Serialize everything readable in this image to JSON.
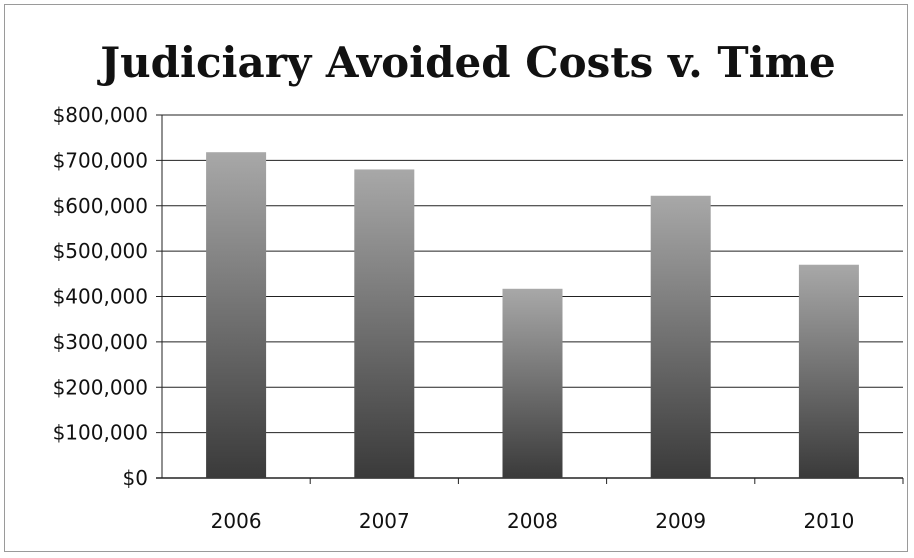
{
  "chart_data": {
    "type": "bar",
    "title": "Judiciary Avoided Costs v. Time",
    "xlabel": "",
    "ylabel": "",
    "categories": [
      "2006",
      "2007",
      "2008",
      "2009",
      "2010"
    ],
    "values": [
      718000,
      680000,
      417000,
      622000,
      470000
    ],
    "ylim": [
      0,
      800000
    ],
    "yticks": [
      0,
      100000,
      200000,
      300000,
      400000,
      500000,
      600000,
      700000,
      800000
    ],
    "ytick_labels": [
      "$0",
      "$100,000",
      "$200,000",
      "$300,000",
      "$400,000",
      "$500,000",
      "$600,000",
      "$700,000",
      "$800,000"
    ],
    "grid": true,
    "legend": "none",
    "colors": {
      "bar_top": "#a8a8a8",
      "bar_bottom": "#3a3a3a",
      "grid": "#222222"
    }
  }
}
